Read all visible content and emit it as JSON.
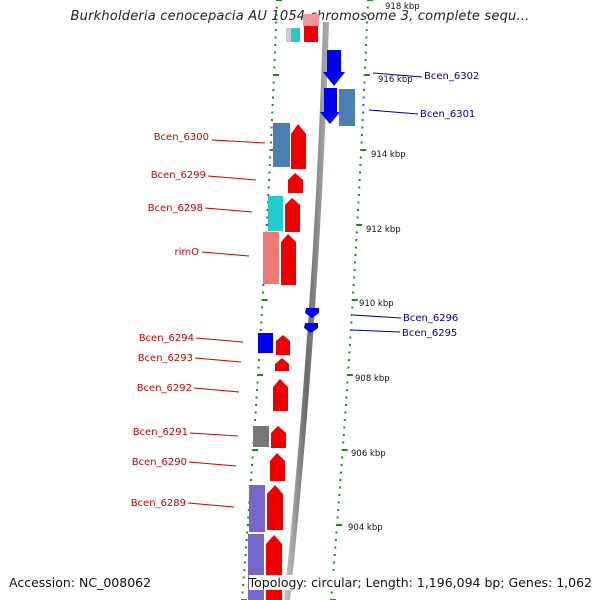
{
  "title": "Burkholderia cenocepacia AU 1054 chromosome 3, complete sequ...",
  "footer": {
    "accession": "Accession: NC_008062",
    "summary": "Topology: circular; Length: 1,196,094 bp; Genes: 1,062"
  },
  "colors": {
    "forward_cds": "#ee0000",
    "reverse_cds": "#0000ee",
    "steelblue": "#4a7fb0",
    "cyan": "#22cccc",
    "pink": "#ee7777",
    "purple": "#7766cc",
    "gray": "#777777",
    "tick_green": "#228822"
  },
  "scale_labels": [
    "918 kbp",
    "916 kbp",
    "914 kbp",
    "912 kbp",
    "910 kbp",
    "908 kbp",
    "906 kbp",
    "904 kbp"
  ],
  "gene_labels_left": [
    "Bcen_6300",
    "Bcen_6299",
    "Bcen_6298",
    "rimO",
    "Bcen_6294",
    "Bcen_6293",
    "Bcen_6292",
    "Bcen_6291",
    "Bcen_6290",
    "Bcen_6289"
  ],
  "gene_labels_right": [
    "Bcen_6302",
    "Bcen_6301",
    "Bcen_6296",
    "Bcen_6295"
  ]
}
